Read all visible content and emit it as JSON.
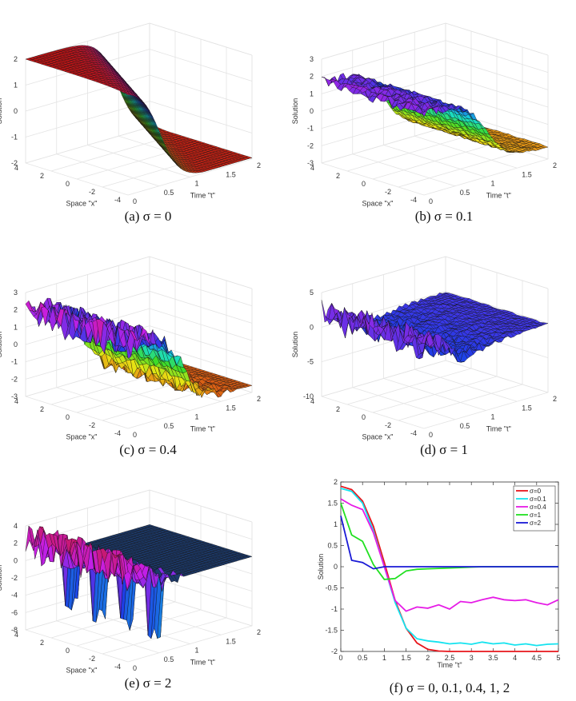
{
  "chart_data": [
    {
      "id": "a",
      "type": "surface",
      "caption": "(a) σ = 0",
      "xlabel": "Time \"t\"",
      "ylabel": "Space \"x\"",
      "zlabel": "Solution",
      "xticks": [
        "0",
        "0.5",
        "1",
        "1.5",
        "2"
      ],
      "yticks": [
        "-4",
        "-2",
        "0",
        "2",
        "4"
      ],
      "zticks": [
        "-2",
        "-1",
        "0",
        "1",
        "2"
      ],
      "t_range": [
        0,
        2
      ],
      "x_range": [
        -4,
        4
      ],
      "z_range": [
        -2,
        2
      ],
      "sigma": 0
    },
    {
      "id": "b",
      "type": "surface",
      "caption": "(b) σ = 0.1",
      "xlabel": "Time \"t\"",
      "ylabel": "Space \"x\"",
      "zlabel": "Solution",
      "xticks": [
        "0",
        "0.5",
        "1",
        "1.5",
        "2"
      ],
      "yticks": [
        "-4",
        "-2",
        "0",
        "2",
        "4"
      ],
      "zticks": [
        "-3",
        "-2",
        "-1",
        "0",
        "1",
        "2",
        "3"
      ],
      "t_range": [
        0,
        2
      ],
      "x_range": [
        -4,
        4
      ],
      "z_range": [
        -3,
        3
      ],
      "sigma": 0.1
    },
    {
      "id": "c",
      "type": "surface",
      "caption": "(c) σ = 0.4",
      "xlabel": "Time \"t\"",
      "ylabel": "Space \"x\"",
      "zlabel": "Solution",
      "xticks": [
        "0",
        "0.5",
        "1",
        "1.5",
        "2"
      ],
      "yticks": [
        "-4",
        "-2",
        "0",
        "2",
        "4"
      ],
      "zticks": [
        "-3",
        "-2",
        "-1",
        "0",
        "1",
        "2",
        "3"
      ],
      "t_range": [
        0,
        2
      ],
      "x_range": [
        -4,
        4
      ],
      "z_range": [
        -3,
        3
      ],
      "sigma": 0.4
    },
    {
      "id": "d",
      "type": "surface",
      "caption": "(d) σ = 1",
      "xlabel": "Time \"t\"",
      "ylabel": "Space \"x\"",
      "zlabel": "Solution",
      "xticks": [
        "0",
        "0.5",
        "1",
        "1.5",
        "2"
      ],
      "yticks": [
        "-4",
        "-2",
        "0",
        "2",
        "4"
      ],
      "zticks": [
        "-10",
        "-5",
        "0",
        "5"
      ],
      "t_range": [
        0,
        2
      ],
      "x_range": [
        -4,
        4
      ],
      "z_range": [
        -10,
        5
      ],
      "sigma": 1
    },
    {
      "id": "e",
      "type": "surface",
      "caption": "(e) σ = 2",
      "xlabel": "Time \"t\"",
      "ylabel": "Space \"x\"",
      "zlabel": "Solution",
      "xticks": [
        "0",
        "0.5",
        "1",
        "1.5",
        "2"
      ],
      "yticks": [
        "-4",
        "-2",
        "0",
        "2",
        "4"
      ],
      "zticks": [
        "-8",
        "-6",
        "-4",
        "-2",
        "0",
        "2",
        "4"
      ],
      "t_range": [
        0,
        2
      ],
      "x_range": [
        -4,
        4
      ],
      "z_range": [
        -8,
        4
      ],
      "sigma": 2
    },
    {
      "id": "f",
      "type": "line",
      "caption": "(f) σ = 0, 0.1, 0.4, 1, 2",
      "xlabel": "Time \"t\"",
      "ylabel": "Solution",
      "xlim": [
        0,
        5
      ],
      "ylim": [
        -2,
        2
      ],
      "xticks": [
        "0",
        "0.5",
        "1",
        "1.5",
        "2",
        "2.5",
        "3",
        "3.5",
        "4",
        "4.5",
        "5"
      ],
      "yticks": [
        "-2",
        "-1.5",
        "-1",
        "-0.5",
        "0",
        "0.5",
        "1",
        "1.5",
        "2"
      ],
      "legend_position": "top-right",
      "x": [
        0,
        0.25,
        0.5,
        0.75,
        1,
        1.25,
        1.5,
        1.75,
        2,
        2.25,
        2.5,
        2.75,
        3,
        3.25,
        3.5,
        3.75,
        4,
        4.25,
        4.5,
        4.75,
        5
      ],
      "series": [
        {
          "name": "σ=0",
          "color": "#e8151b",
          "values": [
            1.9,
            1.82,
            1.55,
            0.95,
            0.1,
            -0.8,
            -1.45,
            -1.8,
            -1.95,
            -1.99,
            -2,
            -2,
            -2,
            -2,
            -2,
            -2,
            -2,
            -2,
            -2,
            -2,
            -2
          ]
        },
        {
          "name": "σ=0.1",
          "color": "#14e3ef",
          "values": [
            1.85,
            1.78,
            1.5,
            0.85,
            0.0,
            -0.85,
            -1.45,
            -1.7,
            -1.75,
            -1.78,
            -1.82,
            -1.8,
            -1.83,
            -1.78,
            -1.82,
            -1.8,
            -1.85,
            -1.82,
            -1.86,
            -1.83,
            -1.82
          ]
        },
        {
          "name": "σ=0.4",
          "color": "#e61ce6",
          "values": [
            1.6,
            1.45,
            1.35,
            0.8,
            0.0,
            -0.8,
            -1.05,
            -0.95,
            -0.98,
            -0.9,
            -1.0,
            -0.82,
            -0.85,
            -0.78,
            -0.72,
            -0.78,
            -0.8,
            -0.78,
            -0.85,
            -0.9,
            -0.78
          ]
        },
        {
          "name": "σ=1",
          "color": "#21e021",
          "values": [
            1.5,
            0.75,
            0.6,
            0.05,
            -0.3,
            -0.28,
            -0.1,
            -0.06,
            -0.05,
            -0.04,
            -0.03,
            -0.02,
            -0.01,
            0,
            0,
            0,
            0,
            0,
            0,
            0,
            0
          ]
        },
        {
          "name": "σ=2",
          "color": "#1a1ad6",
          "values": [
            1.2,
            0.15,
            0.1,
            -0.05,
            0,
            0,
            0,
            0,
            0,
            0,
            0,
            0,
            0,
            0,
            0,
            0,
            0,
            0,
            0,
            0,
            0
          ]
        }
      ]
    }
  ]
}
